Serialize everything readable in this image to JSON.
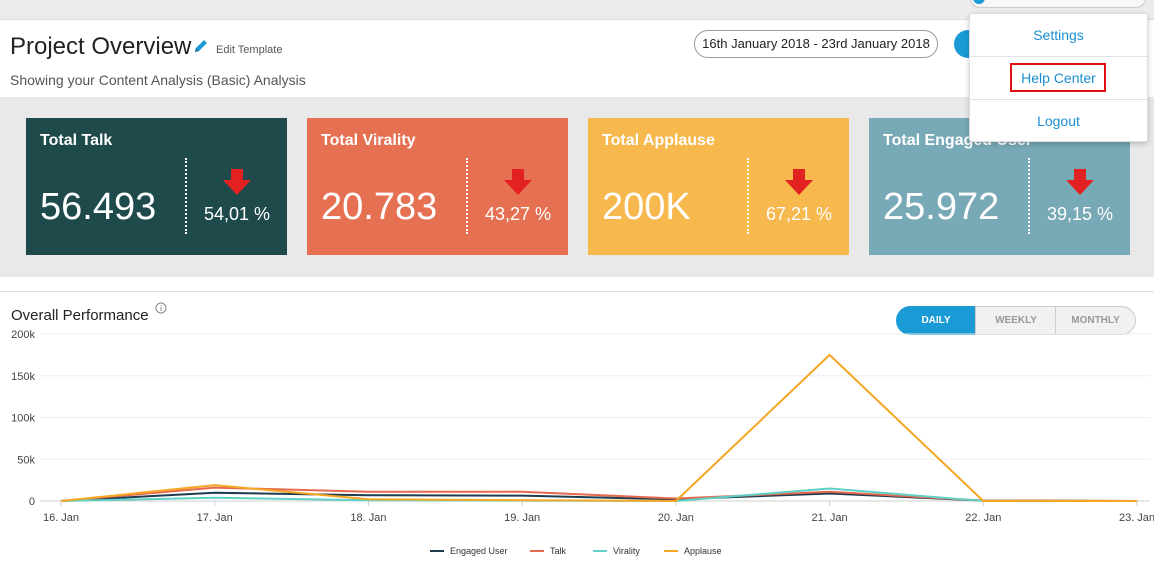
{
  "header": {
    "title": "Project Overview",
    "edit_label": "Edit Template",
    "subtitle": "Showing your Content Analysis (Basic) Analysis",
    "date_range": "16th January 2018 - 23rd January 2018"
  },
  "cards": [
    {
      "title": "Total Talk",
      "value": "56.493",
      "change": "54,01 %",
      "color": "#1f4a4b",
      "trend_icon": "arrow-down-icon"
    },
    {
      "title": "Total Virality",
      "value": "20.783",
      "change": "43,27 %",
      "color": "#e57152",
      "trend_icon": "arrow-down-icon"
    },
    {
      "title": "Total Applause",
      "value": "200K",
      "change": "67,21 %",
      "color": "#f7b84e",
      "trend_icon": "arrow-down-icon"
    },
    {
      "title": "Total Engaged User",
      "value": "25.972",
      "change": "39,15 %",
      "color": "#78a9b6",
      "trend_icon": "arrow-down-icon"
    }
  ],
  "menu": {
    "settings": "Settings",
    "help": "Help Center",
    "logout": "Logout"
  },
  "performance": {
    "title": "Overall Performance",
    "periods": [
      "DAILY",
      "WEEKLY",
      "MONTHLY"
    ],
    "selected_period": "DAILY"
  },
  "chart_data": {
    "type": "line",
    "categories": [
      "16. Jan",
      "17. Jan",
      "18. Jan",
      "19. Jan",
      "20. Jan",
      "21. Jan",
      "22. Jan",
      "23. Jan"
    ],
    "y_ticks": [
      "0",
      "50k",
      "100k",
      "150k",
      "200k"
    ],
    "ylim": [
      0,
      200000
    ],
    "grid": true,
    "legend_placement": "bottom-center",
    "series": [
      {
        "name": "Engaged User",
        "color": "#1f3b4d",
        "values": [
          0,
          10000,
          7000,
          6500,
          2000,
          9000,
          500,
          0
        ]
      },
      {
        "name": "Talk",
        "color": "#e5694d",
        "values": [
          0,
          16000,
          11000,
          11000,
          3000,
          11000,
          500,
          0
        ]
      },
      {
        "name": "Virality",
        "color": "#5fd0c6",
        "values": [
          0,
          4000,
          1000,
          500,
          0,
          15000,
          0,
          0
        ]
      },
      {
        "name": "Applause",
        "color": "#f5a623",
        "values": [
          0,
          19000,
          2000,
          1000,
          0,
          175000,
          0,
          0
        ]
      }
    ]
  }
}
